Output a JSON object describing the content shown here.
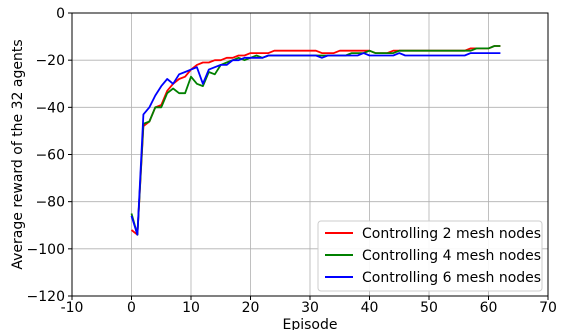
{
  "chart_data": {
    "type": "line",
    "title": "",
    "xlabel": "Episode",
    "ylabel": "Average reward of the 32 agents",
    "xlim": [
      -10,
      70
    ],
    "ylim": [
      -120,
      0
    ],
    "xticks": [
      -10,
      0,
      10,
      20,
      30,
      40,
      50,
      60,
      70
    ],
    "yticks": [
      -120,
      -100,
      -80,
      -60,
      -40,
      -20,
      0
    ],
    "grid": true,
    "legend_position": "lower-right",
    "x": [
      0,
      1,
      2,
      3,
      4,
      5,
      6,
      7,
      8,
      9,
      10,
      11,
      12,
      13,
      14,
      15,
      16,
      17,
      18,
      19,
      20,
      21,
      22,
      23,
      24,
      25,
      26,
      27,
      28,
      29,
      30,
      31,
      32,
      33,
      34,
      35,
      36,
      37,
      38,
      39,
      40,
      41,
      42,
      43,
      44,
      45,
      46,
      47,
      48,
      49,
      50,
      51,
      52,
      53,
      54,
      55,
      56,
      57,
      58,
      59,
      60,
      61,
      62
    ],
    "series": [
      {
        "name": "Controlling 2 mesh nodes",
        "color": "#ff0000",
        "values": [
          -92,
          -94,
          -48,
          -46,
          -40,
          -39,
          -33,
          -30,
          -28,
          -27,
          -24,
          -22,
          -21,
          -21,
          -20,
          -20,
          -19,
          -19,
          -18,
          -18,
          -17,
          -17,
          -17,
          -17,
          -16,
          -16,
          -16,
          -16,
          -16,
          -16,
          -16,
          -16,
          -17,
          -17,
          -17,
          -16,
          -16,
          -16,
          -16,
          -16,
          -16,
          -17,
          -17,
          -17,
          -16,
          -16,
          -16,
          -16,
          -16,
          -16,
          -16,
          -16,
          -16,
          -16,
          -16,
          -16,
          -16,
          -15,
          -15,
          -15,
          -15,
          -14,
          -14
        ]
      },
      {
        "name": "Controlling 4 mesh nodes",
        "color": "#008000",
        "values": [
          -85,
          -94,
          -47,
          -46,
          -40,
          -40,
          -34,
          -32,
          -34,
          -34,
          -27,
          -30,
          -31,
          -25,
          -26,
          -22,
          -21,
          -20,
          -19,
          -20,
          -19,
          -18,
          -19,
          -18,
          -18,
          -18,
          -18,
          -18,
          -18,
          -18,
          -18,
          -18,
          -18,
          -18,
          -18,
          -18,
          -18,
          -17,
          -17,
          -17,
          -16,
          -17,
          -17,
          -17,
          -17,
          -16,
          -16,
          -16,
          -16,
          -16,
          -16,
          -16,
          -16,
          -16,
          -16,
          -16,
          -16,
          -16,
          -15,
          -15,
          -15,
          -14,
          -14
        ]
      },
      {
        "name": "Controlling 6 mesh nodes",
        "color": "#0000ff",
        "values": [
          -86,
          -94,
          -43,
          -40,
          -35,
          -31,
          -28,
          -30,
          -26,
          -25,
          -24,
          -23,
          -30,
          -24,
          -23,
          -22,
          -22,
          -20,
          -20,
          -19,
          -19,
          -19,
          -19,
          -18,
          -18,
          -18,
          -18,
          -18,
          -18,
          -18,
          -18,
          -18,
          -19,
          -18,
          -18,
          -18,
          -18,
          -18,
          -18,
          -17,
          -18,
          -18,
          -18,
          -18,
          -18,
          -17,
          -18,
          -18,
          -18,
          -18,
          -18,
          -18,
          -18,
          -18,
          -18,
          -18,
          -18,
          -17,
          -17,
          -17,
          -17,
          -17,
          -17
        ]
      }
    ]
  }
}
